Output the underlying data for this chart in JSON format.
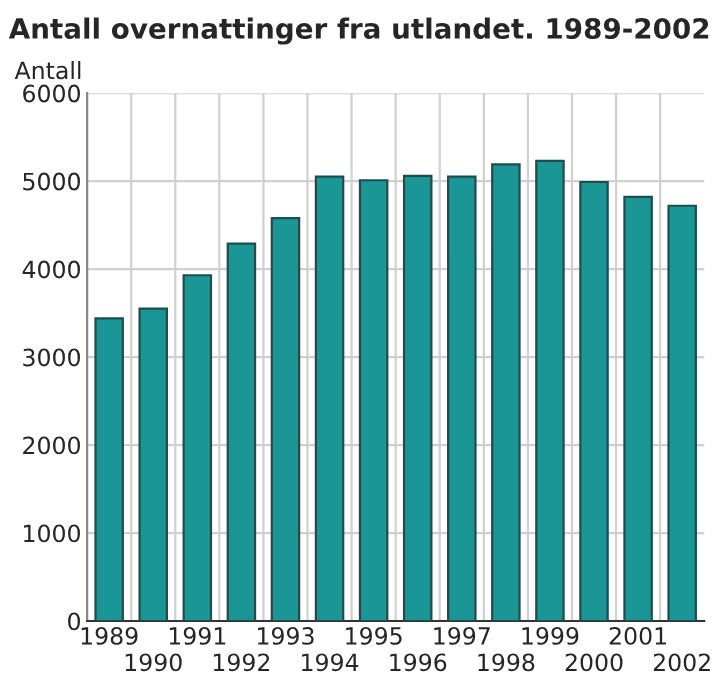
{
  "chart_data": {
    "type": "bar",
    "title": "Antall overnattinger fra utlandet. 1989-2002",
    "ylabel": "Antall",
    "categories": [
      "1989",
      "1990",
      "1991",
      "1992",
      "1993",
      "1994",
      "1995",
      "1996",
      "1997",
      "1998",
      "1999",
      "2000",
      "2001",
      "2002"
    ],
    "values": [
      3440,
      3550,
      3930,
      4290,
      4580,
      5050,
      5010,
      5060,
      5050,
      5190,
      5230,
      4990,
      4820,
      4720
    ],
    "color": "#1a9696",
    "ylim": [
      0,
      6000
    ],
    "yticks": [
      0,
      1000,
      2000,
      3000,
      4000,
      5000,
      6000
    ],
    "grid": true,
    "legend": false
  }
}
